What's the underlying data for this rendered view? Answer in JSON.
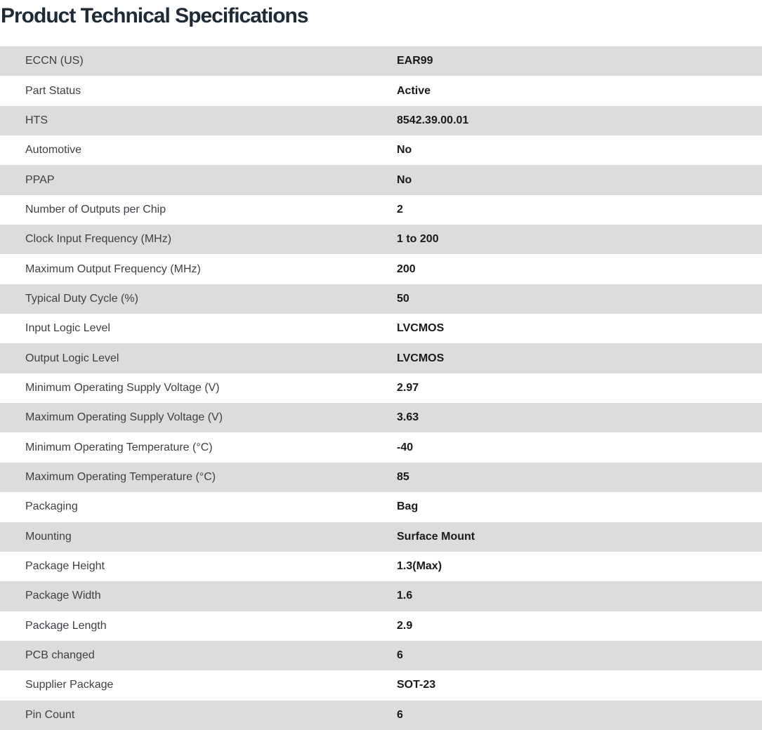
{
  "page": {
    "title": "Product Technical Specifications"
  },
  "colors": {
    "title_text": "#1e2a36",
    "row_alt_bg": "#dcdcdc",
    "label_text": "#3f3f45",
    "value_text": "#1a1a1c"
  },
  "table": {
    "rows": [
      {
        "label": "ECCN (US)",
        "value": "EAR99"
      },
      {
        "label": "Part Status",
        "value": "Active"
      },
      {
        "label": "HTS",
        "value": "8542.39.00.01"
      },
      {
        "label": "Automotive",
        "value": "No"
      },
      {
        "label": "PPAP",
        "value": "No"
      },
      {
        "label": "Number of Outputs per Chip",
        "value": "2"
      },
      {
        "label": "Clock Input Frequency (MHz)",
        "value": "1 to 200"
      },
      {
        "label": "Maximum Output Frequency (MHz)",
        "value": "200"
      },
      {
        "label": "Typical Duty Cycle (%)",
        "value": "50"
      },
      {
        "label": "Input Logic Level",
        "value": "LVCMOS"
      },
      {
        "label": "Output Logic Level",
        "value": "LVCMOS"
      },
      {
        "label": "Minimum Operating Supply Voltage (V)",
        "value": "2.97"
      },
      {
        "label": "Maximum Operating Supply Voltage (V)",
        "value": "3.63"
      },
      {
        "label": "Minimum Operating Temperature (°C)",
        "value": "-40"
      },
      {
        "label": "Maximum Operating Temperature (°C)",
        "value": "85"
      },
      {
        "label": "Packaging",
        "value": "Bag"
      },
      {
        "label": "Mounting",
        "value": "Surface Mount"
      },
      {
        "label": "Package Height",
        "value": "1.3(Max)"
      },
      {
        "label": "Package Width",
        "value": "1.6"
      },
      {
        "label": "Package Length",
        "value": "2.9"
      },
      {
        "label": "PCB changed",
        "value": "6"
      },
      {
        "label": "Supplier Package",
        "value": "SOT-23"
      },
      {
        "label": "Pin Count",
        "value": "6"
      }
    ]
  }
}
